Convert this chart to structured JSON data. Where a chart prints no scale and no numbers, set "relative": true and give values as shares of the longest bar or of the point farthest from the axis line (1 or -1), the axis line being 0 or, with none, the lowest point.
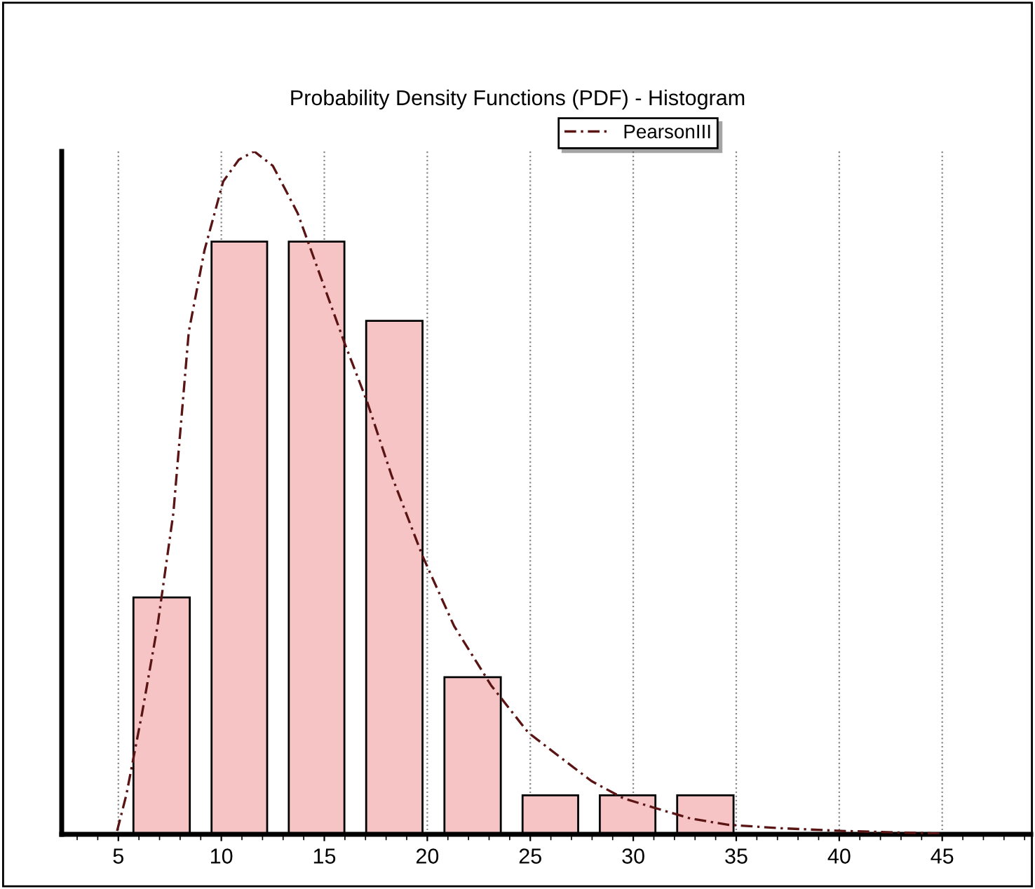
{
  "chart_data": {
    "type": "histogram",
    "title": "Probability Density Functions (PDF) - Histogram",
    "relative": true,
    "xlim": [
      2.25,
      49.3
    ],
    "xticks": [
      5,
      10,
      15,
      20,
      25,
      30,
      35,
      40,
      45
    ],
    "grid": "x",
    "legend": "top",
    "tick_labels": "x",
    "series": [
      {
        "color": "#f6c4c4",
        "bins": [
          5.2,
          9.0,
          12.75,
          16.5,
          20.3,
          24.1,
          27.85,
          31.6,
          35.4
        ],
        "values": [
          0.347,
          0.868,
          0.868,
          0.752,
          0.23,
          0.057,
          0.057,
          0.057
        ]
      },
      {
        "type": "line",
        "name": "PearsonIII",
        "color": "#5a1414",
        "line_style": "dashed",
        "x": [
          4.94,
          5.39,
          6.15,
          6.9,
          7.67,
          8.42,
          9.18,
          10.09,
          10.85,
          11.6,
          12.5,
          13.7,
          14.9,
          16.0,
          17.06,
          18.27,
          19.79,
          21.3,
          23.1,
          24.9,
          26.45,
          27.97,
          29.5,
          31.0,
          32.8,
          34.6,
          37.1,
          40.1,
          45.0
        ],
        "values": [
          0.005,
          0.058,
          0.177,
          0.305,
          0.47,
          0.736,
          0.855,
          0.956,
          0.988,
          1.0,
          0.979,
          0.91,
          0.81,
          0.718,
          0.635,
          0.525,
          0.406,
          0.305,
          0.218,
          0.149,
          0.113,
          0.078,
          0.053,
          0.039,
          0.023,
          0.014,
          0.009,
          0.005,
          0.001
        ]
      }
    ]
  }
}
